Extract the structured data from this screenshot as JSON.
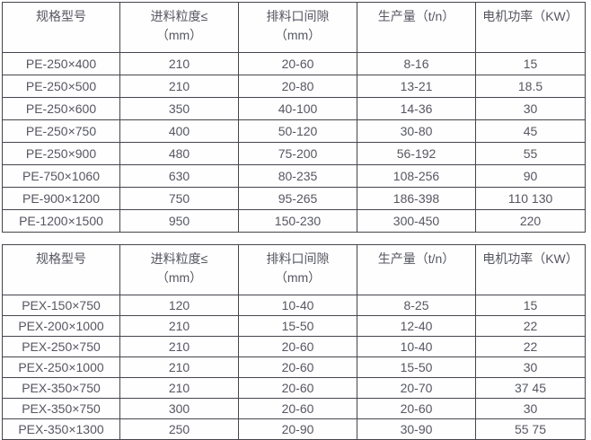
{
  "style": {
    "text_color": "#565761",
    "border_color": "#45464d",
    "background_color": "#ffffff"
  },
  "tables": [
    {
      "name": "pe-jaw-crusher-specs",
      "columns": [
        {
          "line1": "规格型号",
          "line2": ""
        },
        {
          "line1": "进料粒度≤",
          "line2": "（mm）"
        },
        {
          "line1": "排料口间隙",
          "line2": "（mm）"
        },
        {
          "line1": "生产量（t/n）",
          "line2": ""
        },
        {
          "line1": "电机功率（KW）",
          "line2": ""
        }
      ],
      "rows": [
        [
          "PE-250×400",
          "210",
          "20-60",
          "8-16",
          "15"
        ],
        [
          "PE-250×500",
          "210",
          "20-80",
          "13-21",
          "18.5"
        ],
        [
          "PE-250×600",
          "350",
          "40-100",
          "14-36",
          "30"
        ],
        [
          "PE-250×750",
          "400",
          "50-120",
          "30-80",
          "45"
        ],
        [
          "PE-250×900",
          "480",
          "75-200",
          "56-192",
          "55"
        ],
        [
          "PE-750×1060",
          "630",
          "80-235",
          "108-256",
          "90"
        ],
        [
          "PE-900×1200",
          "750",
          "95-265",
          "186-398",
          "110 130"
        ],
        [
          "PE-1200×1500",
          "950",
          "150-230",
          "300-450",
          "220"
        ]
      ]
    },
    {
      "name": "pex-jaw-crusher-specs",
      "columns": [
        {
          "line1": "规格型号",
          "line2": ""
        },
        {
          "line1": "进料粒度≤",
          "line2": "（mm）"
        },
        {
          "line1": "排料口间隙",
          "line2": "（mm）"
        },
        {
          "line1": "生产量（t/n）",
          "line2": ""
        },
        {
          "line1": "电机功率（KW）",
          "line2": ""
        }
      ],
      "rows": [
        [
          "PEX-150×750",
          "120",
          "10-40",
          "8-25",
          "15"
        ],
        [
          "PEX-200×1000",
          "210",
          "15-50",
          "12-40",
          "22"
        ],
        [
          "PEX-250×750",
          "210",
          "20-60",
          "10-40",
          "22"
        ],
        [
          "PEX-250×1000",
          "210",
          "20-60",
          "15-50",
          "30"
        ],
        [
          "PEX-350×750",
          "210",
          "20-60",
          "20-70",
          "37 45"
        ],
        [
          "PEX-350×750",
          "300",
          "20-60",
          "20-60",
          "30"
        ],
        [
          "PEX-350×1300",
          "250",
          "20-90",
          "30-90",
          "55 75"
        ]
      ]
    }
  ]
}
